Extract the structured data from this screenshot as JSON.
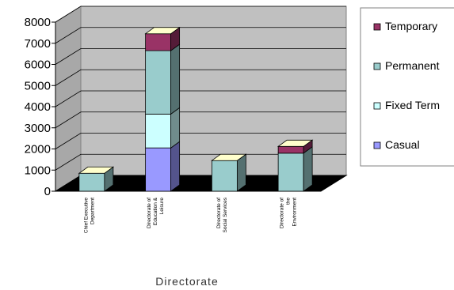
{
  "chart_data": {
    "type": "bar",
    "stacked": true,
    "three_d": true,
    "title": "",
    "xlabel": "Directorate",
    "ylabel": "",
    "ylim": [
      0,
      8000
    ],
    "yticks": [
      0,
      1000,
      2000,
      3000,
      4000,
      5000,
      6000,
      7000,
      8000
    ],
    "grid": true,
    "legend_position": "right",
    "categories": [
      [
        "Chief Executive",
        "Department"
      ],
      [
        "Directorate of",
        "Education &",
        "Leisure"
      ],
      [
        "Directorate of",
        "Social Services"
      ],
      [
        "Directorate of",
        "the",
        "Environment"
      ]
    ],
    "series": [
      {
        "name": "Casual",
        "color": "#9999ff",
        "values": [
          0,
          2050,
          0,
          0
        ]
      },
      {
        "name": "Fixed Term",
        "color": "#ccffff",
        "values": [
          0,
          1600,
          0,
          0
        ]
      },
      {
        "name": "Permanent",
        "color": "#99cccc",
        "values": [
          850,
          3000,
          1450,
          1800
        ]
      },
      {
        "name": "Temporary",
        "color": "#993366",
        "values": [
          0,
          800,
          0,
          320
        ]
      }
    ],
    "legend_order": [
      "Temporary",
      "Permanent",
      "Fixed Term",
      "Casual"
    ]
  }
}
